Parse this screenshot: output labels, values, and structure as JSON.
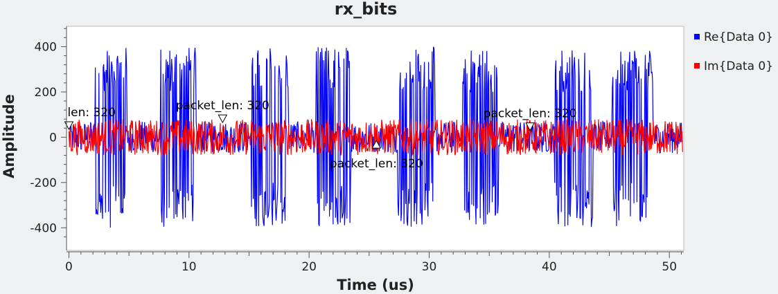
{
  "chart_data": {
    "type": "line",
    "title": "rx_bits",
    "xlabel": "Time (us)",
    "ylabel": "Amplitude",
    "xlim": [
      -0.2,
      51.2
    ],
    "ylim": [
      -500,
      490
    ],
    "x_ticks": [
      0,
      10,
      20,
      30,
      40,
      50
    ],
    "x_tick_labels": [
      "0",
      "10",
      "20",
      "30",
      "40",
      "50"
    ],
    "y_ticks": [
      -400,
      -200,
      0,
      200,
      400
    ],
    "y_tick_labels": [
      "-400",
      "-200",
      "0",
      "200",
      "400"
    ],
    "grid": false,
    "legend_position": "right",
    "sample_period_us": 0.05,
    "series": [
      {
        "name": "Re{Data 0}",
        "color": "#0000ff",
        "bursts_us": [
          [
            2.2,
            4.8
          ],
          [
            7.6,
            10.6
          ],
          [
            15.2,
            18.3
          ],
          [
            20.6,
            23.5
          ],
          [
            27.4,
            30.5
          ],
          [
            32.8,
            35.8
          ],
          [
            40.4,
            43.6
          ],
          [
            45.2,
            48.6
          ]
        ],
        "burst_amplitude_range": [
          200,
          400
        ],
        "noise_amplitude": 70
      },
      {
        "name": "Im{Data 0}",
        "color": "#ff0000",
        "noise_amplitude": 80
      }
    ],
    "annotations": [
      {
        "text": "len: 320",
        "x": 0,
        "y": 50,
        "marker": "down-triangle"
      },
      {
        "text": "packet_len: 320",
        "x": 12.8,
        "y": 80,
        "marker": "down-triangle"
      },
      {
        "text": "packet_len: 320",
        "x": 25.6,
        "y": -30,
        "marker": "up-triangle"
      },
      {
        "text": "packet_len: 320",
        "x": 38.4,
        "y": 45,
        "marker": "down-triangle"
      }
    ]
  }
}
